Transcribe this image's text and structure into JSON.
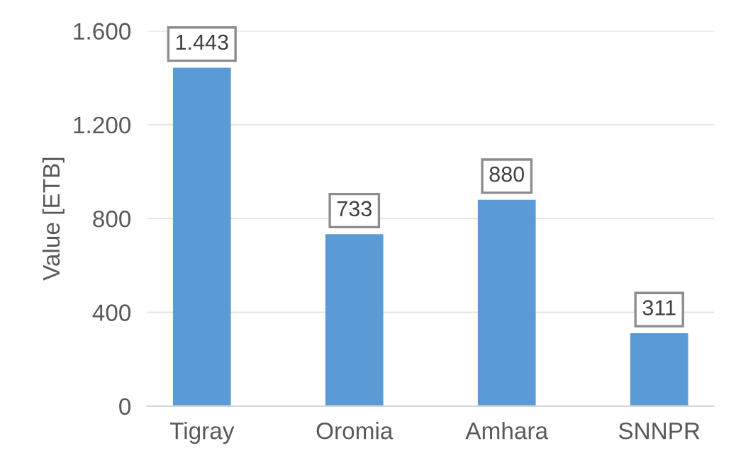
{
  "chart_data": {
    "type": "bar",
    "ylabel": "Value [ETB]",
    "categories": [
      "Tigray",
      "Oromia",
      "Amhara",
      "SNNPR"
    ],
    "values": [
      1443,
      733,
      880,
      311
    ],
    "color": "#5b9bd5",
    "value_labels": [
      "1.443",
      "733",
      "880",
      "311"
    ],
    "ylim": [
      0,
      1600
    ],
    "yticks": [
      0,
      {
        "value": 400,
        "label": "400"
      },
      {
        "value": 800,
        "label": "800"
      },
      {
        "value": 1200,
        "label": "1.200"
      },
      {
        "value": 1600,
        "label": "1.600"
      }
    ],
    "grid": "y"
  }
}
